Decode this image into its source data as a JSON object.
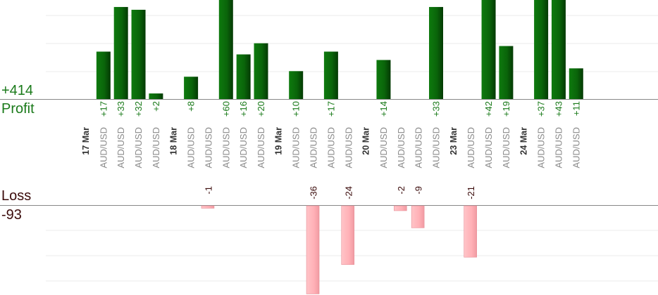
{
  "summary": {
    "profit_label": "Profit",
    "profit_total": "+414",
    "loss_label": "Loss",
    "loss_total": "-93"
  },
  "colors": {
    "profit_bar": "#0b6b0b",
    "profit_text": "#1a7a1a",
    "loss_bar": "#ffb3b8",
    "loss_text": "#3a0a0a",
    "pair_text": "#8a8a8a",
    "date_text": "#333333"
  },
  "chart_data": {
    "type": "bar",
    "xlabel": "",
    "ylabel": "",
    "profit_ylim": [
      0,
      35
    ],
    "loss_ylim": [
      0,
      33
    ],
    "columns": [
      {
        "date": "17 Mar"
      },
      {
        "pair": "AUD/USD",
        "profit": 17
      },
      {
        "pair": "AUD/USD",
        "profit": 33
      },
      {
        "pair": "AUD/USD",
        "profit": 32
      },
      {
        "pair": "AUD/USD",
        "profit": 2
      },
      {
        "date": "18 Mar"
      },
      {
        "pair": "AUD/USD",
        "profit": 8
      },
      {
        "pair": "AUD/USD",
        "loss": -1
      },
      {
        "pair": "AUD/USD",
        "profit": 60
      },
      {
        "pair": "AUD/USD",
        "profit": 16
      },
      {
        "pair": "AUD/USD",
        "profit": 20
      },
      {
        "date": "19 Mar"
      },
      {
        "pair": "AUD/USD",
        "profit": 10
      },
      {
        "pair": "AUD/USD",
        "loss": -36
      },
      {
        "pair": "AUD/USD",
        "profit": 17
      },
      {
        "pair": "AUD/USD",
        "loss": -24
      },
      {
        "date": "20 Mar"
      },
      {
        "pair": "AUD/USD",
        "profit": 14
      },
      {
        "pair": "AUD/USD",
        "loss": -2
      },
      {
        "pair": "AUD/USD",
        "loss": -9
      },
      {
        "pair": "AUD/USD",
        "profit": 33
      },
      {
        "date": "23 Mar"
      },
      {
        "pair": "AUD/USD",
        "loss": -21
      },
      {
        "pair": "AUD/USD",
        "profit": 42
      },
      {
        "pair": "AUD/USD",
        "profit": 19
      },
      {
        "date": "24 Mar"
      },
      {
        "pair": "AUD/USD",
        "profit": 37
      },
      {
        "pair": "AUD/USD",
        "profit": 43
      },
      {
        "pair": "AUD/USD",
        "profit": 11
      }
    ]
  }
}
